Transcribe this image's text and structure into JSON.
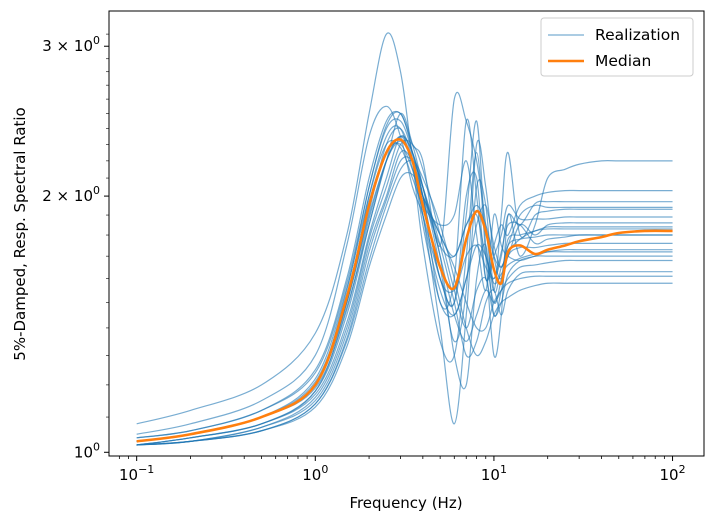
{
  "chart_data": {
    "type": "line",
    "xscale": "log",
    "yscale": "log",
    "xlim": [
      0.07,
      150
    ],
    "ylim": [
      0.99,
      3.3
    ],
    "xlabel": "Frequency (Hz)",
    "ylabel": "5%-Damped, Resp. Spectral Ratio",
    "x_ticks": [
      {
        "value": 0.1,
        "base": "10",
        "exp": "−1"
      },
      {
        "value": 1,
        "base": "10",
        "exp": "0"
      },
      {
        "value": 10,
        "base": "10",
        "exp": "1"
      },
      {
        "value": 100,
        "base": "10",
        "exp": "2"
      }
    ],
    "y_ticks": [
      {
        "value": 1,
        "base": "10",
        "exp": "0"
      },
      {
        "value": 2,
        "base": "2 × 10",
        "exp": "0"
      },
      {
        "value": 3,
        "base": "3 × 10",
        "exp": "0"
      }
    ],
    "legend": {
      "placement": "top-right",
      "entries": [
        {
          "label": "Realization",
          "color": "#1f77b4"
        },
        {
          "label": "Median",
          "color": "#ff7f0e"
        }
      ]
    },
    "realization_color": "#1f77b4",
    "median_color": "#ff7f0e",
    "x": [
      0.1,
      0.2,
      0.5,
      1,
      1.5,
      2,
      2.5,
      3,
      3.5,
      4,
      5,
      6,
      7,
      8,
      9,
      10,
      11,
      12,
      14,
      17,
      20,
      25,
      30,
      40,
      50,
      70,
      100
    ],
    "series": [
      {
        "name": "Median",
        "values": [
          1.03,
          1.05,
          1.1,
          1.2,
          1.52,
          1.95,
          2.25,
          2.33,
          2.2,
          1.95,
          1.65,
          1.56,
          1.78,
          1.92,
          1.82,
          1.64,
          1.58,
          1.72,
          1.75,
          1.71,
          1.73,
          1.75,
          1.77,
          1.79,
          1.81,
          1.82,
          1.82
        ]
      },
      {
        "values": [
          1.03,
          1.05,
          1.1,
          1.2,
          1.52,
          1.95,
          2.25,
          2.33,
          2.2,
          1.95,
          1.65,
          1.56,
          1.78,
          1.92,
          1.82,
          1.64,
          1.58,
          1.72,
          1.75,
          1.71,
          1.73,
          1.75,
          1.77,
          1.79,
          1.81,
          1.82,
          1.82
        ]
      },
      {
        "values": [
          1.08,
          1.12,
          1.2,
          1.38,
          1.8,
          2.5,
          3.1,
          2.8,
          2.2,
          1.75,
          1.35,
          1.3,
          1.7,
          2.25,
          1.7,
          1.3,
          1.45,
          1.9,
          1.7,
          1.85,
          2.1,
          2.15,
          2.18,
          2.2,
          2.2,
          2.2,
          2.2
        ]
      },
      {
        "values": [
          1.05,
          1.08,
          1.15,
          1.3,
          1.75,
          2.35,
          2.55,
          2.35,
          2.05,
          1.9,
          1.6,
          1.5,
          2.0,
          2.1,
          1.6,
          1.75,
          1.85,
          1.8,
          1.95,
          2.0,
          2.02,
          2.03,
          2.03,
          2.03,
          2.03,
          2.03,
          2.03
        ]
      },
      {
        "values": [
          1.04,
          1.06,
          1.12,
          1.25,
          1.6,
          2.1,
          2.45,
          2.5,
          2.3,
          2.2,
          1.75,
          2.6,
          2.45,
          2.2,
          1.85,
          1.55,
          1.9,
          2.25,
          1.8,
          1.9,
          1.92,
          1.93,
          1.93,
          1.93,
          1.93,
          1.93,
          1.93
        ]
      },
      {
        "values": [
          1.03,
          1.05,
          1.1,
          1.2,
          1.55,
          2.05,
          2.4,
          2.45,
          2.25,
          2.0,
          1.5,
          1.6,
          2.45,
          2.0,
          1.6,
          1.7,
          1.8,
          1.95,
          1.88,
          1.88,
          1.88,
          1.89,
          1.89,
          1.89,
          1.89,
          1.89,
          1.89
        ]
      },
      {
        "values": [
          1.03,
          1.05,
          1.1,
          1.2,
          1.5,
          2.0,
          2.35,
          2.4,
          2.15,
          1.9,
          1.4,
          1.08,
          1.45,
          2.05,
          1.95,
          1.55,
          1.65,
          1.7,
          1.85,
          1.8,
          1.85,
          1.86,
          1.86,
          1.86,
          1.86,
          1.86,
          1.86
        ]
      },
      {
        "values": [
          1.02,
          1.04,
          1.08,
          1.18,
          1.48,
          1.85,
          2.2,
          2.35,
          2.2,
          2.0,
          1.6,
          1.5,
          1.9,
          2.45,
          1.75,
          1.5,
          1.6,
          1.78,
          1.8,
          1.82,
          1.84,
          1.84,
          1.84,
          1.84,
          1.84,
          1.84,
          1.84
        ]
      },
      {
        "values": [
          1.02,
          1.04,
          1.08,
          1.18,
          1.45,
          1.85,
          2.2,
          2.5,
          2.3,
          2.05,
          1.65,
          1.35,
          1.55,
          2.3,
          2.05,
          1.7,
          1.6,
          1.75,
          1.78,
          1.79,
          1.8,
          1.8,
          1.8,
          1.8,
          1.8,
          1.8,
          1.8
        ]
      },
      {
        "values": [
          1.02,
          1.04,
          1.08,
          1.17,
          1.42,
          1.8,
          2.1,
          2.35,
          2.25,
          2.05,
          1.7,
          1.3,
          1.2,
          1.6,
          1.75,
          1.45,
          1.55,
          1.7,
          1.74,
          1.74,
          1.75,
          1.76,
          1.76,
          1.76,
          1.76,
          1.76,
          1.76
        ]
      },
      {
        "values": [
          1.02,
          1.03,
          1.07,
          1.16,
          1.4,
          1.78,
          2.05,
          2.3,
          2.3,
          2.15,
          1.8,
          1.55,
          1.4,
          1.55,
          1.6,
          1.45,
          1.5,
          1.62,
          1.68,
          1.7,
          1.72,
          1.73,
          1.73,
          1.73,
          1.73,
          1.73,
          1.73
        ]
      },
      {
        "values": [
          1.02,
          1.03,
          1.07,
          1.15,
          1.38,
          1.75,
          2.0,
          2.25,
          2.2,
          2.05,
          1.7,
          1.45,
          1.35,
          1.45,
          1.55,
          1.5,
          1.55,
          1.6,
          1.65,
          1.66,
          1.67,
          1.68,
          1.68,
          1.68,
          1.68,
          1.68,
          1.68
        ]
      },
      {
        "values": [
          1.02,
          1.03,
          1.06,
          1.14,
          1.36,
          1.72,
          1.98,
          2.2,
          2.2,
          2.05,
          1.75,
          1.5,
          1.3,
          1.35,
          1.5,
          1.55,
          1.45,
          1.55,
          1.62,
          1.63,
          1.63,
          1.63,
          1.63,
          1.63,
          1.63,
          1.63,
          1.63
        ]
      },
      {
        "values": [
          1.02,
          1.03,
          1.06,
          1.14,
          1.35,
          1.68,
          1.95,
          2.15,
          2.2,
          2.1,
          1.85,
          1.6,
          1.4,
          1.3,
          1.35,
          1.45,
          1.5,
          1.52,
          1.55,
          1.57,
          1.58,
          1.58,
          1.58,
          1.58,
          1.58,
          1.58,
          1.58
        ]
      },
      {
        "values": [
          1.02,
          1.03,
          1.06,
          1.13,
          1.33,
          1.65,
          1.9,
          2.1,
          2.12,
          2.0,
          1.8,
          1.65,
          1.5,
          1.4,
          1.4,
          1.5,
          1.55,
          1.58,
          1.6,
          1.61,
          1.61,
          1.61,
          1.61,
          1.61,
          1.61,
          1.61,
          1.61
        ]
      },
      {
        "values": [
          1.03,
          1.05,
          1.1,
          1.21,
          1.53,
          1.97,
          2.25,
          2.3,
          2.15,
          2.0,
          1.8,
          1.7,
          1.85,
          1.9,
          1.7,
          1.6,
          1.7,
          1.9,
          1.85,
          1.96,
          1.97,
          1.97,
          1.97,
          1.97,
          1.97,
          1.97,
          1.97
        ]
      },
      {
        "values": [
          1.03,
          1.05,
          1.1,
          1.22,
          1.56,
          2.0,
          2.3,
          2.28,
          2.1,
          1.95,
          1.85,
          1.9,
          2.2,
          1.8,
          1.55,
          1.9,
          1.75,
          1.7,
          1.68,
          1.7,
          1.7,
          1.7,
          1.7,
          1.7,
          1.7,
          1.7,
          1.7
        ]
      },
      {
        "values": [
          1.03,
          1.05,
          1.1,
          1.2,
          1.5,
          1.9,
          2.2,
          2.35,
          2.25,
          2.0,
          1.6,
          1.55,
          1.7,
          1.75,
          1.65,
          1.6,
          1.72,
          1.85,
          1.85,
          1.76,
          1.78,
          1.79,
          1.8,
          1.8,
          1.8,
          1.8,
          1.8
        ]
      },
      {
        "values": [
          1.03,
          1.05,
          1.1,
          1.19,
          1.47,
          1.88,
          2.2,
          2.32,
          2.2,
          2.0,
          1.75,
          1.7,
          1.85,
          1.95,
          1.85,
          1.7,
          1.65,
          1.72,
          1.78,
          1.82,
          1.83,
          1.83,
          1.83,
          1.83,
          1.83,
          1.83,
          1.83
        ]
      },
      {
        "values": [
          1.04,
          1.06,
          1.12,
          1.24,
          1.58,
          2.05,
          2.42,
          2.5,
          2.25,
          1.9,
          1.55,
          1.45,
          1.6,
          1.75,
          1.7,
          1.58,
          1.62,
          1.66,
          1.69,
          1.71,
          1.72,
          1.72,
          1.72,
          1.72,
          1.72,
          1.72,
          1.72
        ]
      },
      {
        "values": [
          1.03,
          1.05,
          1.1,
          1.2,
          1.5,
          1.92,
          2.3,
          2.4,
          2.2,
          1.85,
          1.5,
          1.45,
          1.6,
          1.85,
          1.95,
          1.75,
          1.65,
          1.75,
          1.9,
          1.95,
          1.94,
          1.94,
          1.94,
          1.94,
          1.94,
          1.94,
          1.94
        ]
      }
    ]
  }
}
